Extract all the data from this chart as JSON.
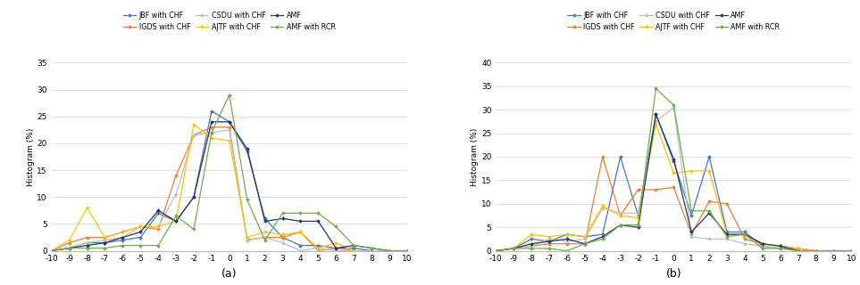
{
  "x": [
    -10,
    -9,
    -8,
    -7,
    -6,
    -5,
    -4,
    -3,
    -2,
    -1,
    0,
    1,
    2,
    3,
    4,
    5,
    6,
    7,
    8,
    9,
    10
  ],
  "plot_a": {
    "JBF_with_CHF": [
      0.0,
      0.5,
      1.5,
      1.5,
      2.0,
      2.5,
      7.0,
      5.5,
      10.0,
      26.0,
      24.0,
      18.5,
      6.0,
      2.5,
      1.0,
      1.0,
      0.5,
      0.5,
      0.0,
      0.0,
      0.0
    ],
    "IGDS_with_CHF": [
      0.0,
      1.5,
      2.5,
      2.5,
      3.5,
      4.5,
      4.0,
      14.0,
      21.5,
      23.0,
      23.0,
      2.0,
      2.5,
      2.5,
      3.5,
      0.0,
      0.5,
      0.0,
      0.0,
      0.0,
      0.0
    ],
    "CSDU_with_CHF": [
      0.0,
      0.5,
      1.5,
      2.0,
      2.5,
      4.5,
      4.5,
      10.5,
      21.5,
      22.0,
      22.5,
      2.0,
      2.5,
      1.5,
      0.0,
      0.5,
      0.0,
      0.0,
      0.0,
      0.0,
      0.0
    ],
    "AJTF_with_CHF": [
      0.0,
      2.0,
      8.0,
      2.5,
      3.5,
      4.5,
      4.5,
      5.5,
      23.5,
      21.0,
      20.5,
      2.5,
      3.5,
      3.0,
      3.5,
      0.5,
      1.5,
      0.0,
      0.0,
      0.0,
      0.0
    ],
    "AMF": [
      0.0,
      0.5,
      1.0,
      1.5,
      2.5,
      3.5,
      7.5,
      5.5,
      10.0,
      24.0,
      24.0,
      19.0,
      5.5,
      6.0,
      5.5,
      5.5,
      0.5,
      1.0,
      0.5,
      0.0,
      0.0
    ],
    "AMF_with_RCR": [
      0.0,
      0.5,
      0.5,
      0.5,
      1.0,
      1.0,
      1.0,
      6.5,
      4.0,
      22.0,
      29.0,
      9.5,
      2.0,
      7.0,
      7.0,
      7.0,
      4.5,
      1.0,
      0.5,
      0.0,
      0.0
    ]
  },
  "plot_b": {
    "JBF_with_CHF": [
      0.0,
      0.5,
      2.5,
      2.0,
      3.5,
      3.0,
      3.5,
      20.0,
      7.5,
      29.0,
      19.0,
      7.5,
      20.0,
      4.0,
      4.0,
      1.0,
      0.5,
      0.5,
      0.0,
      0.0,
      0.0
    ],
    "IGDS_with_CHF": [
      0.0,
      0.5,
      1.0,
      1.5,
      1.5,
      1.5,
      20.0,
      7.5,
      13.0,
      13.0,
      13.5,
      3.5,
      10.5,
      10.0,
      2.5,
      1.5,
      1.0,
      0.5,
      0.0,
      0.0,
      0.0
    ],
    "CSDU_with_CHF": [
      0.0,
      0.5,
      1.0,
      2.5,
      2.0,
      2.5,
      9.0,
      8.0,
      8.0,
      27.5,
      30.5,
      3.0,
      2.5,
      2.5,
      1.5,
      1.0,
      0.5,
      0.0,
      0.0,
      0.0,
      0.0
    ],
    "AJTF_with_CHF": [
      0.0,
      0.5,
      3.5,
      3.0,
      3.5,
      3.0,
      9.5,
      7.5,
      7.0,
      27.0,
      16.5,
      17.0,
      17.0,
      3.5,
      3.5,
      1.5,
      1.0,
      0.5,
      0.0,
      0.0,
      0.0
    ],
    "AMF": [
      0.0,
      0.5,
      1.5,
      2.0,
      2.5,
      1.5,
      3.0,
      5.5,
      5.0,
      29.0,
      19.5,
      4.0,
      8.0,
      3.5,
      3.5,
      1.5,
      1.0,
      0.0,
      0.0,
      0.0,
      0.0
    ],
    "AMF_with_RCR": [
      0.0,
      0.5,
      0.5,
      0.5,
      0.0,
      1.5,
      2.5,
      5.5,
      5.5,
      34.5,
      31.0,
      8.5,
      8.5,
      3.0,
      3.5,
      0.5,
      0.5,
      0.0,
      0.0,
      0.0,
      0.0
    ]
  },
  "colors": {
    "JBF_with_CHF": "#4472C4",
    "IGDS_with_CHF": "#ED7D31",
    "CSDU_with_CHF": "#BFBFBF",
    "AJTF_with_CHF": "#FFC000",
    "AMF": "#203864",
    "AMF_with_RCR": "#70AD47"
  },
  "legend_labels": {
    "JBF_with_CHF": "JBF with CHF",
    "IGDS_with_CHF": "IGDS with CHF",
    "CSDU_with_CHF": "CSDU with CHF",
    "AJTF_with_CHF": "AJTF with CHF",
    "AMF": "AMF",
    "AMF_with_RCR": "AMF with RCR"
  },
  "series_order": [
    "JBF_with_CHF",
    "IGDS_with_CHF",
    "CSDU_with_CHF",
    "AJTF_with_CHF",
    "AMF",
    "AMF_with_RCR"
  ],
  "ylabel": "Histogram (%)",
  "ylim_a": [
    0,
    35
  ],
  "ylim_b": [
    0,
    40
  ],
  "yticks_a": [
    0,
    5,
    10,
    15,
    20,
    25,
    30,
    35
  ],
  "yticks_b": [
    0,
    5,
    10,
    15,
    20,
    25,
    30,
    35,
    40
  ],
  "xlabel_a": "(a)",
  "xlabel_b": "(b)",
  "background_color": "#ffffff",
  "grid_color": "#d9d9d9"
}
